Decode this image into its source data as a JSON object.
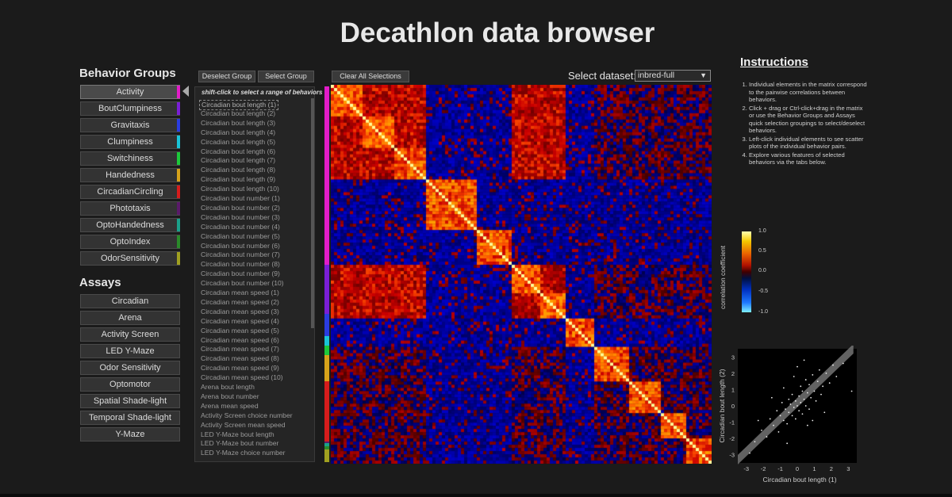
{
  "title": "Decathlon data browser",
  "behavior_groups": {
    "heading": "Behavior Groups",
    "items": [
      {
        "label": "Activity",
        "color": "#e21cc8",
        "active": true
      },
      {
        "label": "BoutClumpiness",
        "color": "#7a1ed6"
      },
      {
        "label": "Gravitaxis",
        "color": "#2a3ce0"
      },
      {
        "label": "Clumpiness",
        "color": "#19c4d8"
      },
      {
        "label": "Switchiness",
        "color": "#1cc83a"
      },
      {
        "label": "Handedness",
        "color": "#d6a21a"
      },
      {
        "label": "CircadianCircling",
        "color": "#d61c1c"
      },
      {
        "label": "Phototaxis",
        "color": "#5a1a6a"
      },
      {
        "label": "OptoHandedness",
        "color": "#1aa08a"
      },
      {
        "label": "OptoIndex",
        "color": "#2a8a2a"
      },
      {
        "label": "OdorSensitivity",
        "color": "#a0a020"
      }
    ]
  },
  "assays": {
    "heading": "Assays",
    "items": [
      "Circadian",
      "Arena",
      "Activity Screen",
      "LED Y-Maze",
      "Odor Sensitivity",
      "Optomotor",
      "Spatial Shade-light",
      "Temporal Shade-light",
      "Y-Maze"
    ]
  },
  "toolbar": {
    "deselect_group": "Deselect Group",
    "select_group": "Select Group",
    "clear_all": "Clear All Selections",
    "dataset_label": "Select dataset:",
    "dataset_value": "inbred-full"
  },
  "behavior_list": {
    "hint": "shift-click to select a range of behaviors",
    "items": [
      "Circadian bout length (1)",
      "Circadian bout length (2)",
      "Circadian bout length (3)",
      "Circadian bout length (4)",
      "Circadian bout length (5)",
      "Circadian bout length (6)",
      "Circadian bout length (7)",
      "Circadian bout length (8)",
      "Circadian bout length (9)",
      "Circadian bout length (10)",
      "Circadian bout number (1)",
      "Circadian bout number (2)",
      "Circadian bout number (3)",
      "Circadian bout number (4)",
      "Circadian bout number (5)",
      "Circadian bout number (6)",
      "Circadian bout number (7)",
      "Circadian bout number (8)",
      "Circadian bout number (9)",
      "Circadian bout number (10)",
      "Circadian mean speed (1)",
      "Circadian mean speed (2)",
      "Circadian mean speed (3)",
      "Circadian mean speed (4)",
      "Circadian mean speed (5)",
      "Circadian mean speed (6)",
      "Circadian mean speed (7)",
      "Circadian mean speed (8)",
      "Circadian mean speed (9)",
      "Circadian mean speed (10)",
      "Arena bout length",
      "Arena bout number",
      "Arena mean speed",
      "Activity Screen choice number",
      "Activity Screen mean speed",
      "LED Y-Maze bout length",
      "LED Y-Maze bout number",
      "LED Y-Maze choice number"
    ]
  },
  "group_strip": [
    {
      "color": "#e21cc8",
      "fraction": 0.475
    },
    {
      "color": "#7a1ed6",
      "fraction": 0.13
    },
    {
      "color": "#2a3ce0",
      "fraction": 0.06
    },
    {
      "color": "#19c4d8",
      "fraction": 0.025
    },
    {
      "color": "#1cc83a",
      "fraction": 0.025
    },
    {
      "color": "#d6a21a",
      "fraction": 0.07
    },
    {
      "color": "#d61c1c",
      "fraction": 0.16
    },
    {
      "color": "#5a1a6a",
      "fraction": 0.005
    },
    {
      "color": "#1aa08a",
      "fraction": 0.008
    },
    {
      "color": "#2a8a2a",
      "fraction": 0.008
    },
    {
      "color": "#a0a020",
      "fraction": 0.034
    }
  ],
  "instructions": {
    "heading": "Instructions",
    "items": [
      "Individual elements in the matrix correspond to the pairwise correlations between behaviors.",
      "Click + drag or Ctrl-click+drag in the matrix or use the Behavior Groups and Assays quick selection groupings to select/deselect behaviors.",
      "Left-click individual elements to see scatter plots of the individual behavior pairs.",
      "Explore various features of selected behaviors via the tabs below."
    ]
  },
  "colorbar": {
    "label": "correlation coefficient",
    "ticks": [
      "1.0",
      "0.5",
      "0.0",
      "-0.5",
      "-1.0"
    ]
  },
  "chart_data": {
    "type": "scatter",
    "xlabel": "Circadian bout length (1)",
    "ylabel": "Circadian bout length (2)",
    "xlim": [
      -3.5,
      3.5
    ],
    "ylim": [
      -3.5,
      3.5
    ],
    "xticks": [
      "-3",
      "-2",
      "-1",
      "0",
      "1",
      "2",
      "3"
    ],
    "yticks": [
      "3",
      "2",
      "1",
      "0",
      "-1",
      "-2",
      "-3"
    ],
    "points": [
      [
        -2.5,
        -2.2
      ],
      [
        -2.1,
        -1.5
      ],
      [
        -1.8,
        -1.9
      ],
      [
        -1.6,
        -0.8
      ],
      [
        -1.4,
        -1.2
      ],
      [
        -1.2,
        -0.3
      ],
      [
        -1.1,
        -1.6
      ],
      [
        -1.0,
        -0.6
      ],
      [
        -0.9,
        0.2
      ],
      [
        -0.8,
        -0.9
      ],
      [
        -0.7,
        -0.2
      ],
      [
        -0.6,
        -1.1
      ],
      [
        -0.5,
        0.4
      ],
      [
        -0.5,
        -0.4
      ],
      [
        -0.4,
        0.1
      ],
      [
        -0.3,
        -0.6
      ],
      [
        -0.3,
        0.7
      ],
      [
        -0.2,
        -0.1
      ],
      [
        -0.1,
        0.3
      ],
      [
        -0.1,
        -0.8
      ],
      [
        0.0,
        0.0
      ],
      [
        0.1,
        0.6
      ],
      [
        0.1,
        -0.3
      ],
      [
        0.2,
        1.2
      ],
      [
        0.2,
        0.2
      ],
      [
        0.3,
        -0.5
      ],
      [
        0.3,
        0.9
      ],
      [
        0.4,
        0.4
      ],
      [
        0.5,
        1.6
      ],
      [
        0.5,
        0.0
      ],
      [
        0.6,
        0.8
      ],
      [
        0.7,
        -0.2
      ],
      [
        0.7,
        1.3
      ],
      [
        0.8,
        0.5
      ],
      [
        0.9,
        1.9
      ],
      [
        1.0,
        0.9
      ],
      [
        1.1,
        0.3
      ],
      [
        1.2,
        1.5
      ],
      [
        1.3,
        2.2
      ],
      [
        1.4,
        0.7
      ],
      [
        1.5,
        1.2
      ],
      [
        1.7,
        2.0
      ],
      [
        1.9,
        1.4
      ],
      [
        2.1,
        2.5
      ],
      [
        2.3,
        1.8
      ],
      [
        -0.2,
        1.8
      ],
      [
        0.6,
        -1.2
      ],
      [
        -1.5,
        0.5
      ],
      [
        1.6,
        -0.4
      ],
      [
        -0.8,
        1.1
      ],
      [
        0.0,
        2.4
      ],
      [
        0.9,
        -0.9
      ],
      [
        -2.8,
        -2.9
      ],
      [
        -2.3,
        -0.9
      ],
      [
        3.2,
        0.9
      ],
      [
        2.7,
        2.6
      ],
      [
        0.4,
        2.8
      ],
      [
        -0.6,
        -2.3
      ]
    ],
    "band": [
      [
        -3.5,
        -3.3
      ],
      [
        3.3,
        3.5
      ]
    ]
  }
}
